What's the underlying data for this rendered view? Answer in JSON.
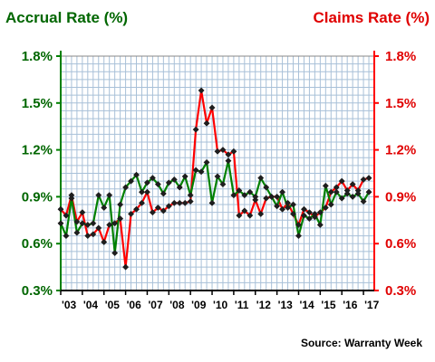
{
  "chart_data": {
    "type": "line",
    "left_axis_title": "Accrual Rate (%)",
    "right_axis_title": "Claims Rate (%)",
    "source": "Source: Warranty Week",
    "ylim": [
      0.3,
      1.8
    ],
    "yticks": [
      0.3,
      0.6,
      0.9,
      1.2,
      1.5,
      1.8
    ],
    "yticks_left_labels": [
      "0.3%",
      "0.6%",
      "0.9%",
      "1.2%",
      "1.5%",
      "1.8%"
    ],
    "yticks_right_labels": [
      "0.3%",
      "0.6%",
      "0.9%",
      "1.2%",
      "1.5%",
      "1.8%"
    ],
    "x_start": 2003,
    "x_end": 2017.5,
    "xticks": [
      2003,
      2004,
      2005,
      2006,
      2007,
      2008,
      2009,
      2010,
      2011,
      2012,
      2013,
      2014,
      2015,
      2016,
      2017
    ],
    "xtick_labels": [
      "'03",
      "'04",
      "'05",
      "'06",
      "'07",
      "'08",
      "'09",
      "'10",
      "'11",
      "'12",
      "'13",
      "'14",
      "'15",
      "'16",
      "'17"
    ],
    "grid": true,
    "colors": {
      "accrual": "#008000",
      "claims": "#ff0000",
      "accrual_axis": "#006600",
      "claims_axis": "#e00000",
      "grid": "#a8c0d8",
      "marker": "#1e1e1e"
    },
    "series": [
      {
        "name": "Accrual Rate (%)",
        "axis": "left",
        "x": [
          2003.0,
          2003.25,
          2003.5,
          2003.75,
          2004.0,
          2004.25,
          2004.5,
          2004.75,
          2005.0,
          2005.25,
          2005.5,
          2005.75,
          2006.0,
          2006.25,
          2006.5,
          2006.75,
          2007.0,
          2007.25,
          2007.5,
          2007.75,
          2008.0,
          2008.25,
          2008.5,
          2008.75,
          2009.0,
          2009.25,
          2009.5,
          2009.75,
          2010.0,
          2010.25,
          2010.5,
          2010.75,
          2011.0,
          2011.25,
          2011.5,
          2011.75,
          2012.0,
          2012.25,
          2012.5,
          2012.75,
          2013.0,
          2013.25,
          2013.5,
          2013.75,
          2014.0,
          2014.25,
          2014.5,
          2014.75,
          2015.0,
          2015.25,
          2015.5,
          2015.75,
          2016.0,
          2016.25,
          2016.5,
          2016.75,
          2017.0,
          2017.25
        ],
        "values": [
          0.73,
          0.65,
          0.89,
          0.67,
          0.73,
          0.72,
          0.73,
          0.91,
          0.83,
          0.91,
          0.54,
          0.85,
          0.96,
          1.0,
          1.04,
          0.93,
          0.99,
          1.02,
          0.98,
          0.92,
          0.99,
          1.01,
          0.96,
          1.03,
          0.91,
          1.07,
          1.06,
          1.12,
          0.86,
          1.03,
          0.98,
          1.13,
          0.91,
          0.94,
          0.91,
          0.93,
          0.9,
          1.02,
          0.96,
          0.9,
          0.84,
          0.93,
          0.83,
          0.85,
          0.65,
          0.78,
          0.76,
          0.79,
          0.72,
          0.97,
          0.85,
          0.93,
          0.89,
          0.92,
          0.9,
          0.92,
          0.87,
          0.93
        ]
      },
      {
        "name": "Claims Rate (%)",
        "axis": "right",
        "x": [
          2003.0,
          2003.25,
          2003.5,
          2003.75,
          2004.0,
          2004.25,
          2004.5,
          2004.75,
          2005.0,
          2005.25,
          2005.5,
          2005.75,
          2006.0,
          2006.25,
          2006.5,
          2006.75,
          2007.0,
          2007.25,
          2007.5,
          2007.75,
          2008.0,
          2008.25,
          2008.5,
          2008.75,
          2009.0,
          2009.25,
          2009.5,
          2009.75,
          2010.0,
          2010.25,
          2010.5,
          2010.75,
          2011.0,
          2011.25,
          2011.5,
          2011.75,
          2012.0,
          2012.25,
          2012.5,
          2012.75,
          2013.0,
          2013.25,
          2013.5,
          2013.75,
          2014.0,
          2014.25,
          2014.5,
          2014.75,
          2015.0,
          2015.25,
          2015.5,
          2015.75,
          2016.0,
          2016.25,
          2016.5,
          2016.75,
          2017.0,
          2017.25
        ],
        "values": [
          0.82,
          0.78,
          0.91,
          0.74,
          0.8,
          0.65,
          0.66,
          0.7,
          0.61,
          0.72,
          0.73,
          0.76,
          0.45,
          0.79,
          0.82,
          0.86,
          0.93,
          0.8,
          0.83,
          0.81,
          0.84,
          0.86,
          0.86,
          0.86,
          0.87,
          1.33,
          1.58,
          1.37,
          1.47,
          1.19,
          1.2,
          1.17,
          1.19,
          0.78,
          0.81,
          0.78,
          0.88,
          0.79,
          0.89,
          0.9,
          0.9,
          0.82,
          0.86,
          0.79,
          0.72,
          0.82,
          0.8,
          0.77,
          0.8,
          0.83,
          0.93,
          0.96,
          1.0,
          0.94,
          0.98,
          0.94,
          1.01,
          1.02
        ]
      }
    ]
  }
}
